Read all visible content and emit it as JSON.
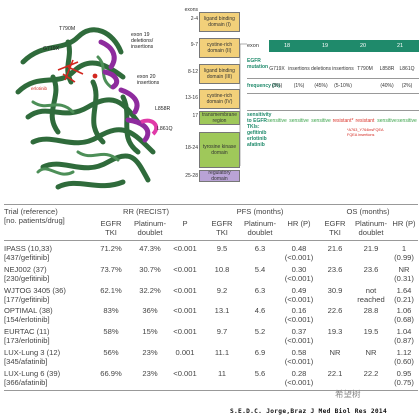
{
  "figure": {
    "protein_labels": {
      "t790m": "T790M",
      "g719x": "G719X",
      "exon19": "exon 19\ndeletions/\ninsertions",
      "exon20": "exon 20\ninsertions",
      "l858r": "L858R",
      "l861q": "L861Q",
      "erlotinib": "erlotinib"
    },
    "exon_column": {
      "header": "exons",
      "ranges": [
        "2-4",
        "9-7",
        "8-12",
        "13-16",
        "17",
        "18-24",
        "25-28"
      ]
    },
    "domains": [
      {
        "name": "ligand binding\ndomain (I)",
        "color": "#f2d07a"
      },
      {
        "name": "cystine-rich\ndomain (II)",
        "color": "#f2d07a"
      },
      {
        "name": "ligand binding\ndomain (III)",
        "color": "#f2d07a"
      },
      {
        "name": "cystine-rich\ndomain (IV)",
        "color": "#f2d07a"
      },
      {
        "name": "transmembrane\nregion",
        "color": "#9fc85a"
      },
      {
        "name": "tyrosine kinase\ndomain",
        "color": "#9fc85a"
      },
      {
        "name": "regulatory\ndomain",
        "color": "#b9a3d6"
      }
    ],
    "mutation_panel": {
      "exon_label": "exon",
      "exons": [
        "18",
        "19",
        "20",
        "21"
      ],
      "row_header_mutation": "EGFR\nmutation",
      "row_header_frequency": "frequency (%)",
      "row_header_sensitivity": "sensitivity\nto EGFR\nTKIs:\ngefitinib\nerlotinib\nafatinib",
      "mutations": [
        "G719X",
        "insertions",
        "deletions",
        "insertions",
        "T790M",
        "L858R",
        "L861Q"
      ],
      "frequencies": [
        "(3%)",
        "(1%)",
        "(45%)",
        "(5-10%)",
        "",
        "(40%)",
        "(2%)"
      ],
      "sensitivity": [
        "sensitive",
        "sensitive",
        "sensitive",
        "resistant*",
        "resistant",
        "sensitive",
        "sensitive"
      ],
      "footnote": "*A763_Y764insFQEA\nFQEA insertions",
      "colors": {
        "bar": "#1f8a6b",
        "sensitive": "#3aa34a",
        "resistant": "#d9342b"
      }
    }
  },
  "table": {
    "group_headers": {
      "rr": "RR (RECIST)",
      "pfs": "PFS (months)",
      "os": "OS (months)"
    },
    "col_trial": "Trial (reference)\n[no. patients/drug]",
    "sub_headers": {
      "egfr": "EGFR\nTKI",
      "plat": "Platinum-\ndoublet",
      "p": "P",
      "hr": "HR (P)"
    },
    "rows": [
      {
        "trial": "IPASS (10,33)\n[437/gefitinib]",
        "rr_egfr": "71.2%",
        "rr_plat": "47.3%",
        "rr_p": "<0.001",
        "pfs_egfr": "9.5",
        "pfs_plat": "6.3",
        "pfs_hr": "0.48\n(<0.001)",
        "os_egfr": "21.6",
        "os_plat": "21.9",
        "os_hr": "1\n(0.99)"
      },
      {
        "trial": "NEJ002 (37)\n[230/gefitinib]",
        "rr_egfr": "73.7%",
        "rr_plat": "30.7%",
        "rr_p": "<0.001",
        "pfs_egfr": "10.8",
        "pfs_plat": "5.4",
        "pfs_hr": "0.30\n(<0.001)",
        "os_egfr": "23.6",
        "os_plat": "23.6",
        "os_hr": "NR\n(0.31)"
      },
      {
        "trial": "WJTOG 3405 (36)\n[177/gefitinib]",
        "rr_egfr": "62.1%",
        "rr_plat": "32.2%",
        "rr_p": "<0.001",
        "pfs_egfr": "9.2",
        "pfs_plat": "6.3",
        "pfs_hr": "0.49\n(<0.001)",
        "os_egfr": "30.9",
        "os_plat": "not\nreached",
        "os_hr": "1.64\n(0.21)"
      },
      {
        "trial": "OPTIMAL (38)\n[154/erlotinib]",
        "rr_egfr": "83%",
        "rr_plat": "36%",
        "rr_p": "<0.001",
        "pfs_egfr": "13.1",
        "pfs_plat": "4.6",
        "pfs_hr": "0.16\n(<0.001)",
        "os_egfr": "22.6",
        "os_plat": "28.8",
        "os_hr": "1.06\n(0.68)"
      },
      {
        "trial": "EURTAC (11)\n[173/erlotinib]",
        "rr_egfr": "58%",
        "rr_plat": "15%",
        "rr_p": "<0.001",
        "pfs_egfr": "9.7",
        "pfs_plat": "5.2",
        "pfs_hr": "0.37\n(<0.001)",
        "os_egfr": "19.3",
        "os_plat": "19.5",
        "os_hr": "1.04\n(0.87)"
      },
      {
        "trial": "LUX-Lung 3 (12)\n[345/afatinib]",
        "rr_egfr": "56%",
        "rr_plat": "23%",
        "rr_p": "0.001",
        "pfs_egfr": "11.1",
        "pfs_plat": "6.9",
        "pfs_hr": "0.58\n(<0.001)",
        "os_egfr": "NR",
        "os_plat": "NR",
        "os_hr": "1.12\n(0.60)"
      },
      {
        "trial": "LUX-Lung 6 (39)\n[366/afatinib]",
        "rr_egfr": "66.9%",
        "rr_plat": "23%",
        "rr_p": "<0.001",
        "pfs_egfr": "11",
        "pfs_plat": "5.6",
        "pfs_hr": "0.28\n(<0.001)",
        "os_egfr": "22.1",
        "os_plat": "22.2",
        "os_hr": "0.95\n(0.75)"
      }
    ]
  },
  "watermark": "希望树",
  "credit": "S.E.D.C. Jorge,Braz J Med Biol Res 2014"
}
